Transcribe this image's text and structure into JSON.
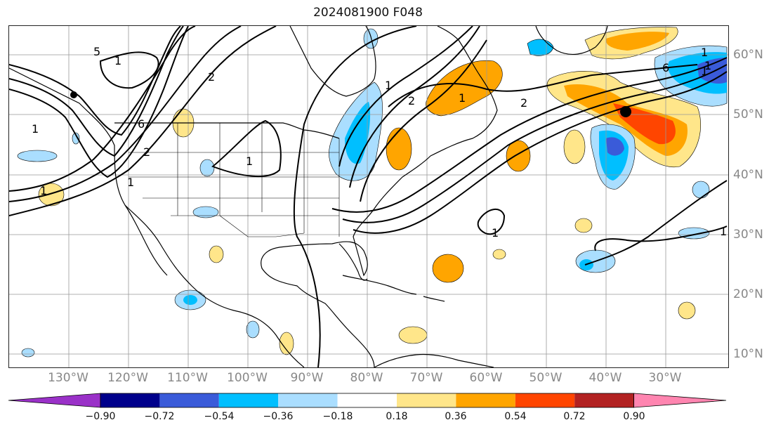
{
  "title": "2024081900 F048",
  "lon_labels": [
    "130°W",
    "120°W",
    "110°W",
    "100°W",
    "90°W",
    "80°W",
    "70°W",
    "60°W",
    "50°W",
    "40°W",
    "30°W"
  ],
  "lat_labels": [
    "60°N",
    "50°N",
    "40°N",
    "30°N",
    "20°N",
    "10°N"
  ],
  "contour_labels": [
    "1",
    "1",
    "1",
    "2",
    "5",
    "6",
    "1",
    "1",
    "1",
    "2",
    "1",
    "2",
    "6",
    "1",
    "1",
    "1",
    "1",
    "2",
    "1"
  ],
  "colorbar": {
    "ticks": [
      "−0.90",
      "−0.72",
      "−0.54",
      "−0.36",
      "−0.18",
      "0.18",
      "0.36",
      "0.54",
      "0.72",
      "0.90"
    ],
    "colors": [
      "#9a31c8",
      "#00008b",
      "#3a5bd9",
      "#00bfff",
      "#aadeff",
      "#ffffff",
      "#ffe68a",
      "#ffa500",
      "#ff4500",
      "#b22222",
      "#ff85b0"
    ]
  }
}
